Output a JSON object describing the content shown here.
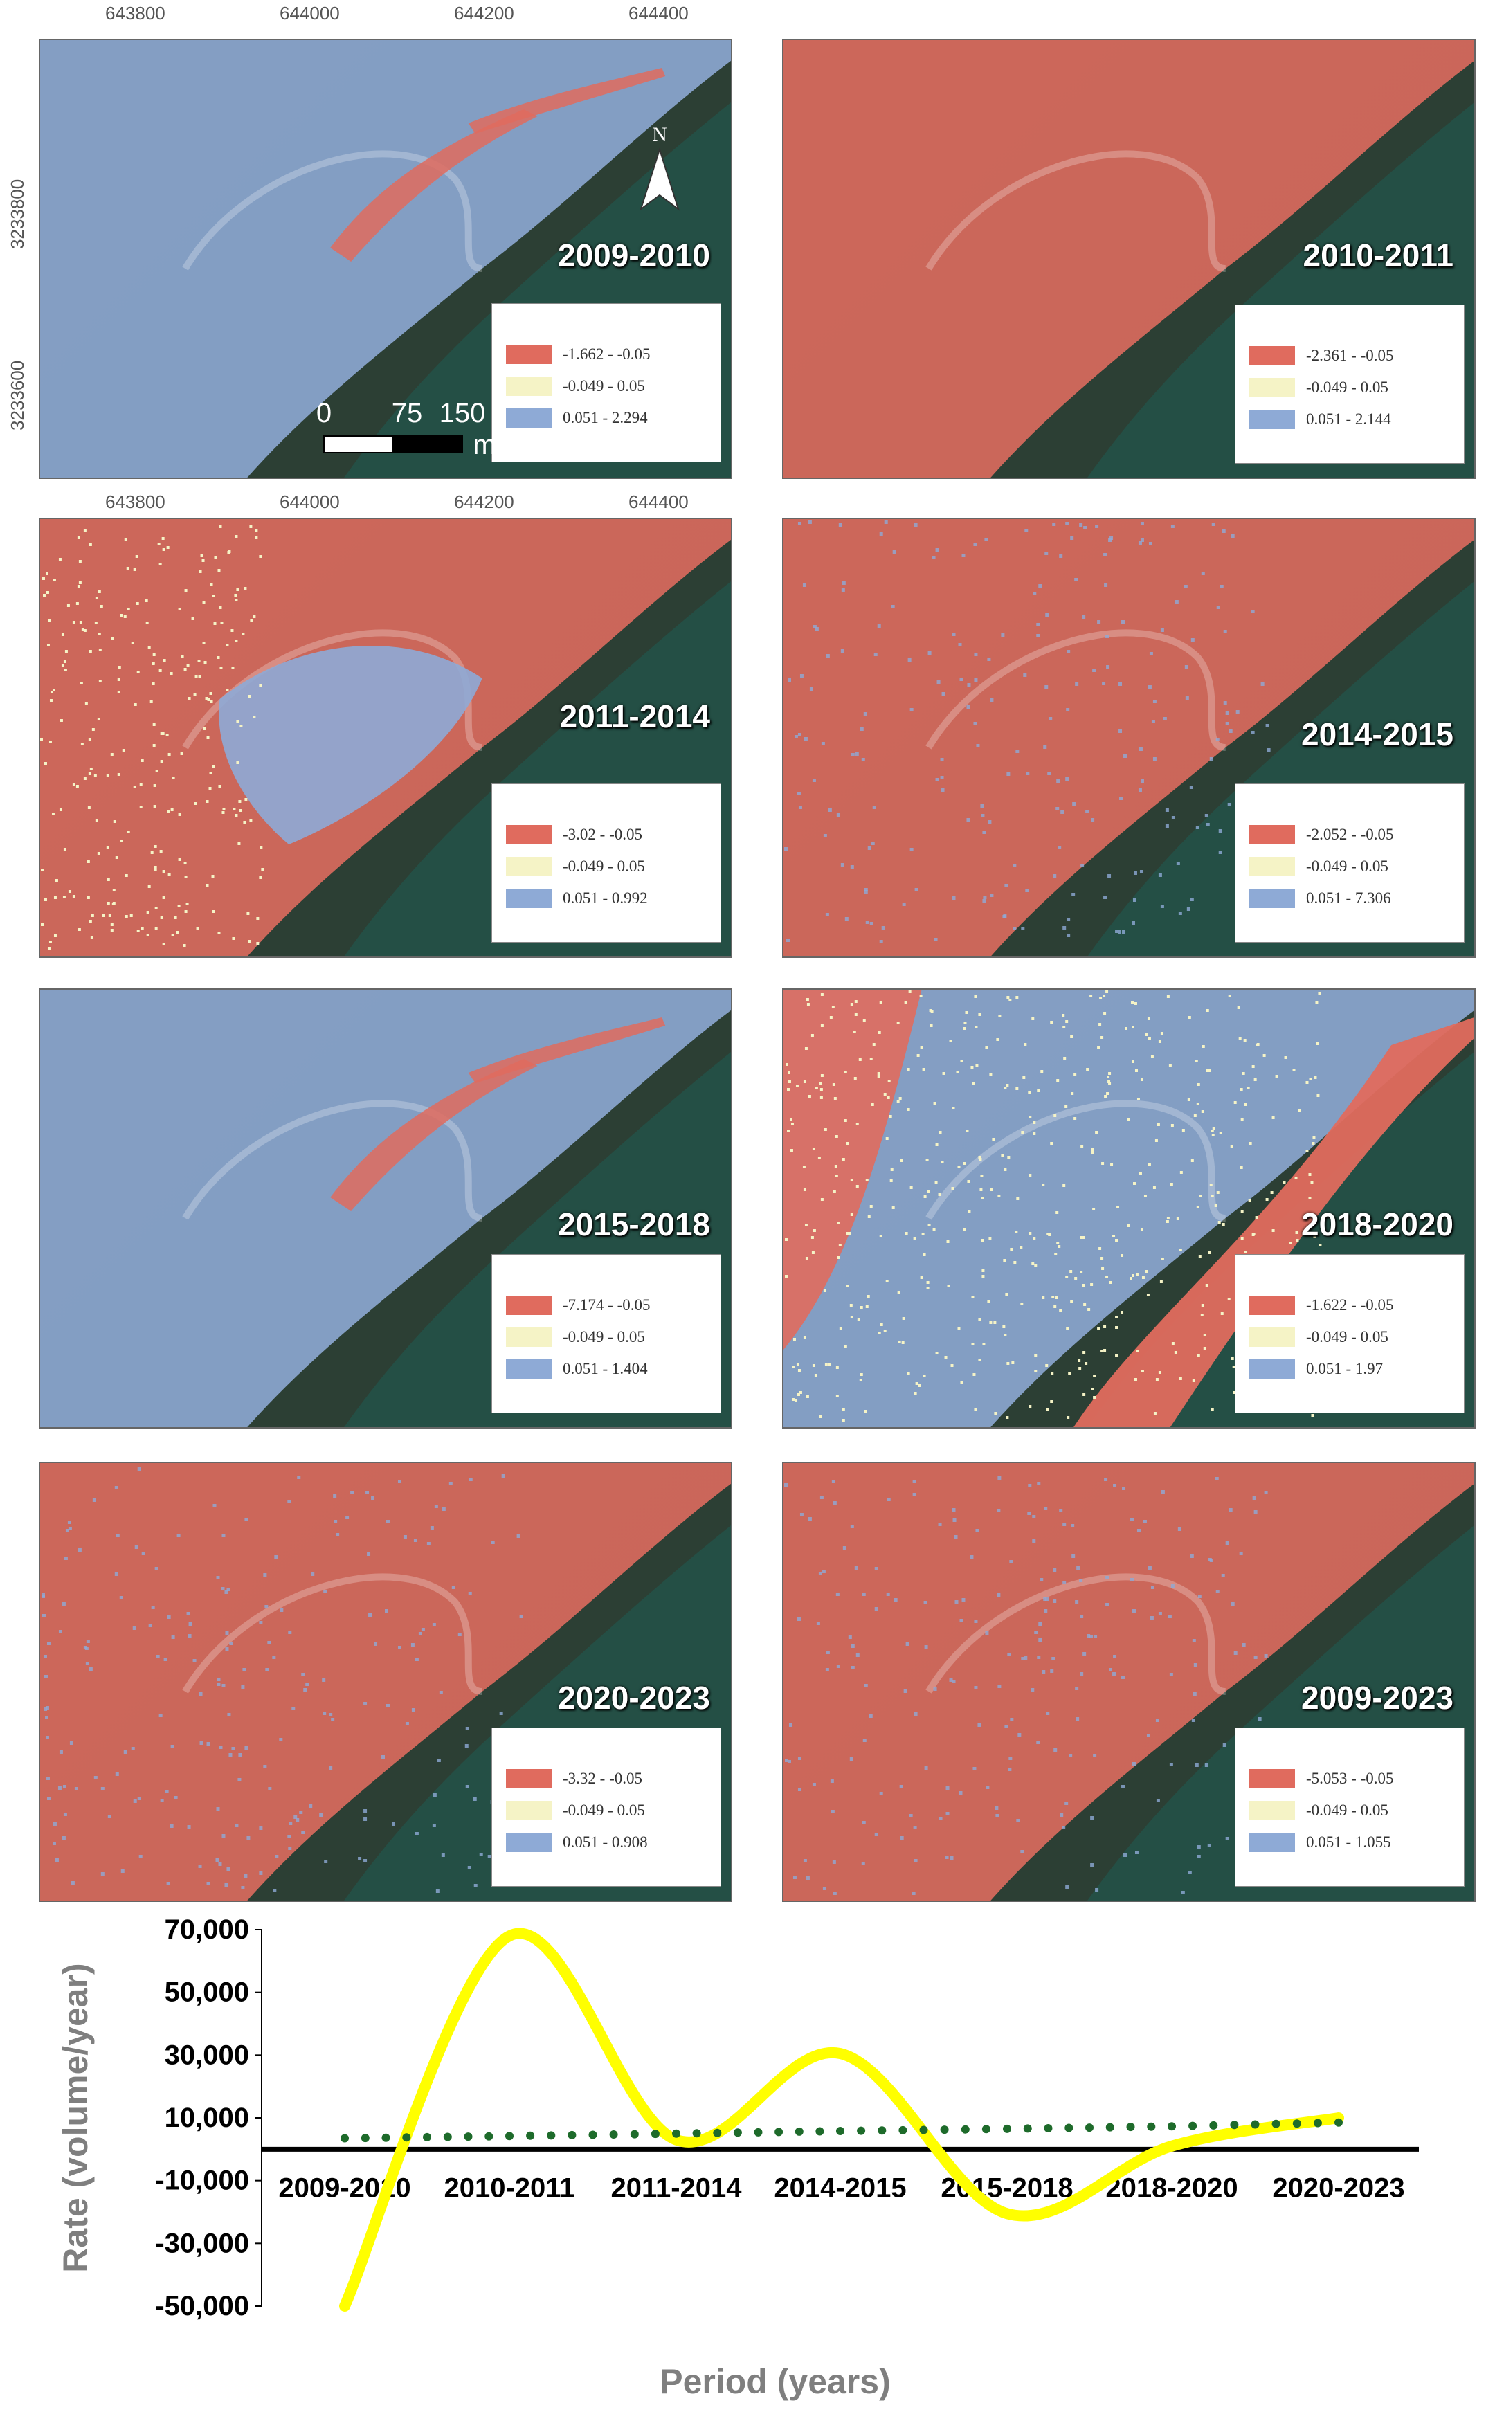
{
  "map_axes": {
    "x_ticks": [
      "643800",
      "644000",
      "644200",
      "644400"
    ],
    "y_ticks": [
      "3233800",
      "3233600"
    ]
  },
  "north_label": "N",
  "scale": {
    "labels": [
      "0",
      "75",
      "150"
    ],
    "unit": "m"
  },
  "colors": {
    "loss": "#e06b5e",
    "stable": "#f5f3c6",
    "gain": "#8eaad6",
    "trend_line": "#ffff00",
    "dots": "#1e6b2b"
  },
  "panels": [
    {
      "period": "2009-2010",
      "legend": [
        "-1.662 - -0.05",
        "-0.049 - 0.05",
        "0.051 - 2.294"
      ]
    },
    {
      "period": "2010-2011",
      "legend": [
        "-2.361 - -0.05",
        "-0.049 - 0.05",
        "0.051 - 2.144"
      ]
    },
    {
      "period": "2011-2014",
      "legend": [
        "-3.02 - -0.05",
        "-0.049 - 0.05",
        "0.051 - 0.992"
      ]
    },
    {
      "period": "2014-2015",
      "legend": [
        "-2.052 - -0.05",
        "-0.049 - 0.05",
        "0.051 - 7.306"
      ]
    },
    {
      "period": "2015-2018",
      "legend": [
        "-7.174 - -0.05",
        "-0.049 - 0.05",
        "0.051 - 1.404"
      ]
    },
    {
      "period": "2018-2020",
      "legend": [
        "-1.622 - -0.05",
        "-0.049 - 0.05",
        "0.051 - 1.97"
      ]
    },
    {
      "period": "2020-2023",
      "legend": [
        "-3.32 - -0.05",
        "-0.049 - 0.05",
        "0.051 - 0.908"
      ]
    },
    {
      "period": "2009-2023",
      "legend": [
        "-5.053 - -0.05",
        "-0.049 - 0.05",
        "0.051 - 1.055"
      ]
    }
  ],
  "chart_data": {
    "type": "line",
    "categories": [
      "2009-2010",
      "2010-2011",
      "2011-2014",
      "2014-2015",
      "2015-2018",
      "2018-2020",
      "2020-2023"
    ],
    "series": [
      {
        "values": [
          -50000,
          68000,
          3000,
          30500,
          -20500,
          1000,
          10000
        ]
      },
      {
        "values": [
          3500,
          4200,
          5000,
          5800,
          6500,
          7300,
          8500
        ]
      }
    ],
    "y_ticks": [
      "70,000",
      "50,000",
      "30,000",
      "10,000",
      "-10,000",
      "-30,000",
      "-50,000"
    ],
    "ylim": [
      -50000,
      70000
    ],
    "xlabel": "Period (years)",
    "ylabel": "Rate (volume/year)",
    "grid": false,
    "legend": false
  }
}
